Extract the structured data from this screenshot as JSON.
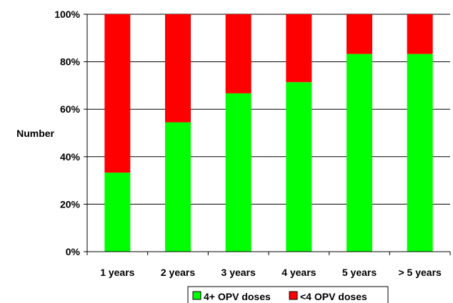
{
  "chart_data": {
    "type": "bar",
    "stacked": true,
    "percent_stacked": true,
    "categories": [
      "1 years",
      "2 years",
      "3 years",
      "4 years",
      "5 years",
      "> 5 years"
    ],
    "series": [
      {
        "name": "4+ OPV doses",
        "values": [
          33.3,
          54.5,
          66.7,
          71.4,
          83.3,
          83.3
        ],
        "color": "#00ff00"
      },
      {
        "name": "<4 OPV doses",
        "values": [
          66.7,
          45.5,
          33.3,
          28.6,
          16.7,
          16.7
        ],
        "color": "#ff0000"
      }
    ],
    "title": "",
    "xlabel": "",
    "ylabel": "Number",
    "ylim": [
      0,
      100
    ],
    "yticks": [
      "0%",
      "20%",
      "40%",
      "60%",
      "80%",
      "100%"
    ],
    "grid": true,
    "legend_position": "bottom"
  }
}
